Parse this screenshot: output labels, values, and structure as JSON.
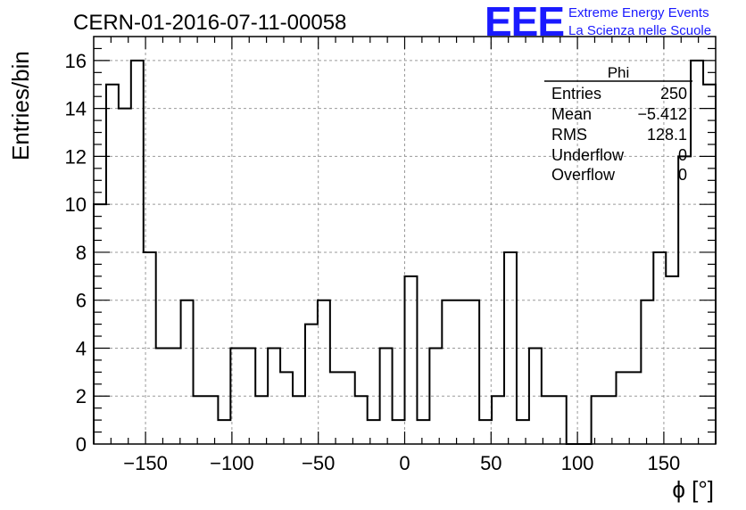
{
  "chart_data": {
    "type": "histogram",
    "title": "CERN-01-2016-07-11-00058",
    "xlabel": "ϕ [°]",
    "ylabel": "Entries/bin",
    "xlim": [
      -180,
      180
    ],
    "ylim": [
      0,
      17
    ],
    "grid": true,
    "bin_width": 7.2,
    "bin_start": -180,
    "counts": [
      10,
      15,
      14,
      16,
      8,
      4,
      4,
      6,
      2,
      2,
      1,
      4,
      4,
      2,
      4,
      3,
      2,
      5,
      6,
      3,
      3,
      2,
      1,
      4,
      1,
      7,
      1,
      4,
      6,
      6,
      6,
      1,
      2,
      8,
      1,
      4,
      2,
      2,
      0,
      0,
      2,
      2,
      3,
      3,
      6,
      8,
      7,
      12,
      16,
      15
    ],
    "x_ticks": [
      "−150",
      "−100",
      "−50",
      "0",
      "50",
      "100",
      "150"
    ],
    "x_tick_values": [
      -150,
      -100,
      -50,
      0,
      50,
      100,
      150
    ],
    "y_ticks": [
      "0",
      "2",
      "4",
      "6",
      "8",
      "10",
      "12",
      "14",
      "16"
    ],
    "y_tick_values": [
      0,
      2,
      4,
      6,
      8,
      10,
      12,
      14,
      16
    ],
    "stats_box": {
      "name": "Phi",
      "rows": [
        {
          "label": "Entries",
          "value": "250"
        },
        {
          "label": "Mean",
          "value": "−5.412"
        },
        {
          "label": "RMS",
          "value": "128.1"
        },
        {
          "label": "Underflow",
          "value": "0"
        },
        {
          "label": "Overflow",
          "value": "0"
        }
      ]
    },
    "line_color": "#000000"
  },
  "logo": {
    "mark": "EEE",
    "line1": "Extreme Energy Events",
    "line2": "La Scienza nelle Scuole",
    "color": "#1a1aff"
  }
}
